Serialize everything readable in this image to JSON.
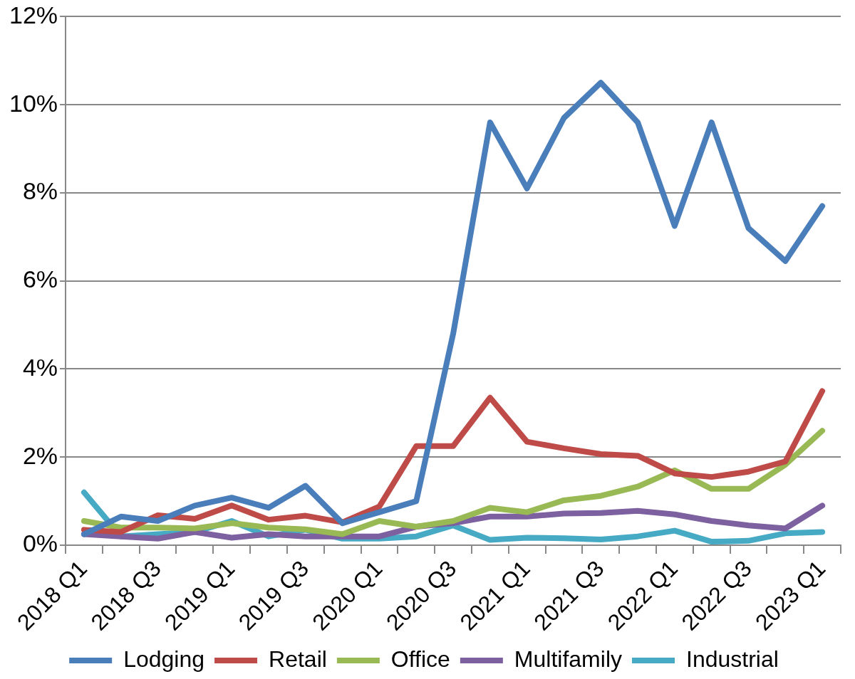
{
  "chart_data": {
    "type": "line",
    "categories": [
      "2018 Q1",
      null,
      "2018 Q3",
      null,
      "2019 Q1",
      null,
      "2019 Q3",
      null,
      "2020 Q1",
      null,
      "2020 Q3",
      null,
      "2021 Q1",
      null,
      "2021 Q3",
      null,
      "2022 Q1",
      null,
      "2022 Q3",
      null,
      "2023 Q1"
    ],
    "series": [
      {
        "name": "Lodging",
        "color": "#4a7ebb",
        "values": [
          0.25,
          0.65,
          0.55,
          0.9,
          1.08,
          0.85,
          1.35,
          0.5,
          0.75,
          1.0,
          4.8,
          9.6,
          8.1,
          9.7,
          10.5,
          9.6,
          7.25,
          9.6,
          7.2,
          6.45,
          7.7
        ]
      },
      {
        "name": "Retail",
        "color": "#be4b48",
        "values": [
          0.35,
          0.3,
          0.68,
          0.6,
          0.9,
          0.58,
          0.67,
          0.52,
          0.88,
          2.25,
          2.25,
          3.35,
          2.35,
          2.2,
          2.07,
          2.03,
          1.63,
          1.55,
          1.67,
          1.9,
          3.5
        ]
      },
      {
        "name": "Office",
        "color": "#98b954",
        "values": [
          0.55,
          0.4,
          0.4,
          0.38,
          0.5,
          0.4,
          0.36,
          0.25,
          0.55,
          0.42,
          0.55,
          0.85,
          0.75,
          1.02,
          1.12,
          1.33,
          1.7,
          1.28,
          1.28,
          1.83,
          2.6
        ]
      },
      {
        "name": "Multifamily",
        "color": "#7d60a0",
        "values": [
          0.25,
          0.2,
          0.15,
          0.3,
          0.17,
          0.25,
          0.2,
          0.2,
          0.2,
          0.42,
          0.5,
          0.65,
          0.65,
          0.72,
          0.73,
          0.78,
          0.7,
          0.55,
          0.45,
          0.38,
          0.9
        ]
      },
      {
        "name": "Industrial",
        "color": "#46aac5",
        "values": [
          1.2,
          0.2,
          0.25,
          0.3,
          0.55,
          0.2,
          0.35,
          0.15,
          0.15,
          0.2,
          0.45,
          0.12,
          0.17,
          0.16,
          0.13,
          0.2,
          0.33,
          0.08,
          0.1,
          0.27,
          0.3
        ]
      }
    ],
    "ylim": [
      0,
      12
    ],
    "yticks": [
      {
        "value": 0,
        "label": "0%"
      },
      {
        "value": 2,
        "label": "2%"
      },
      {
        "value": 4,
        "label": "4%"
      },
      {
        "value": 6,
        "label": "6%"
      },
      {
        "value": 8,
        "label": "8%"
      },
      {
        "value": 10,
        "label": "10%"
      },
      {
        "value": 12,
        "label": "12%"
      }
    ],
    "grid": "y",
    "legend": "bottom",
    "marker": "none",
    "line_style": "solid"
  }
}
